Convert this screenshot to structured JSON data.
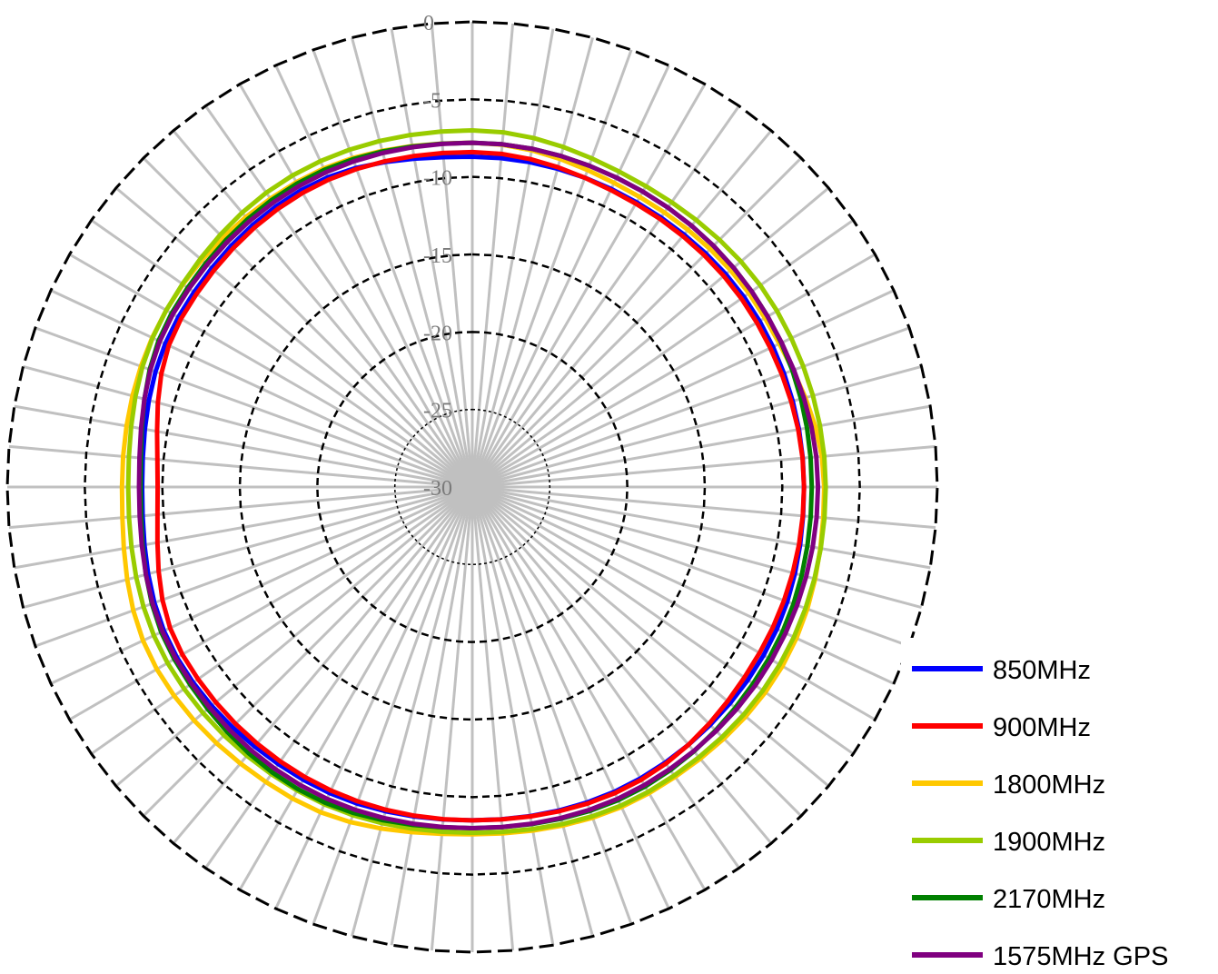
{
  "chart_data": {
    "type": "radar",
    "title": "",
    "angular_divisions": 72,
    "radial_axis": {
      "range": [
        -30,
        0
      ],
      "ticks": [
        0,
        -5,
        -10,
        -15,
        -20,
        -25,
        -30
      ],
      "tick_labels": [
        "0",
        "-5",
        "-10",
        "-15",
        "-20",
        "-25",
        "-30"
      ]
    },
    "grid": {
      "radial_spokes": true,
      "rings": true
    },
    "legend_position": "bottom-right",
    "series": [
      {
        "name": "850MHz",
        "color": "#0000ff",
        "values_by_angle_deg": [
          [
            0,
            -8.7
          ],
          [
            30,
            -8.8
          ],
          [
            60,
            -8.6
          ],
          [
            90,
            -8.6
          ],
          [
            120,
            -8.3
          ],
          [
            150,
            -8.3
          ],
          [
            180,
            -8.5
          ],
          [
            210,
            -8.2
          ],
          [
            240,
            -8.0
          ],
          [
            270,
            -8.7
          ],
          [
            300,
            -8.1
          ],
          [
            330,
            -7.9
          ]
        ]
      },
      {
        "name": "900MHz",
        "color": "#ff0000",
        "values_by_angle_deg": [
          [
            0,
            -8.4
          ],
          [
            30,
            -8.9
          ],
          [
            60,
            -8.8
          ],
          [
            90,
            -8.6
          ],
          [
            120,
            -8.6
          ],
          [
            150,
            -8.2
          ],
          [
            180,
            -8.5
          ],
          [
            210,
            -8.4
          ],
          [
            240,
            -8.4
          ],
          [
            270,
            -9.7
          ],
          [
            300,
            -8.3
          ],
          [
            330,
            -8.1
          ]
        ]
      },
      {
        "name": "1800MHz",
        "color": "#ffc800",
        "values_by_angle_deg": [
          [
            0,
            -7.8
          ],
          [
            30,
            -8.4
          ],
          [
            60,
            -8.2
          ],
          [
            90,
            -7.3
          ],
          [
            120,
            -6.9
          ],
          [
            150,
            -7.2
          ],
          [
            180,
            -7.6
          ],
          [
            210,
            -6.8
          ],
          [
            240,
            -6.5
          ],
          [
            270,
            -7.4
          ],
          [
            300,
            -7.2
          ],
          [
            330,
            -7.3
          ]
        ]
      },
      {
        "name": "1900MHz",
        "color": "#99cc00",
        "values_by_angle_deg": [
          [
            0,
            -7.0
          ],
          [
            30,
            -7.6
          ],
          [
            60,
            -7.3
          ],
          [
            90,
            -7.2
          ],
          [
            120,
            -7.1
          ],
          [
            150,
            -7.3
          ],
          [
            180,
            -7.7
          ],
          [
            210,
            -7.4
          ],
          [
            240,
            -7.3
          ],
          [
            270,
            -7.8
          ],
          [
            300,
            -7.2
          ],
          [
            330,
            -6.8
          ]
        ]
      },
      {
        "name": "2170MHz",
        "color": "#008000",
        "values_by_angle_deg": [
          [
            0,
            -7.8
          ],
          [
            30,
            -8.0
          ],
          [
            60,
            -8.0
          ],
          [
            90,
            -8.1
          ],
          [
            120,
            -7.9
          ],
          [
            150,
            -7.7
          ],
          [
            180,
            -8.0
          ],
          [
            210,
            -7.5
          ],
          [
            240,
            -7.8
          ],
          [
            270,
            -8.6
          ],
          [
            300,
            -7.6
          ],
          [
            330,
            -7.4
          ]
        ]
      },
      {
        "name": "1575MHz GPS",
        "color": "#800080",
        "values_by_angle_deg": [
          [
            0,
            -7.8
          ],
          [
            30,
            -8.0
          ],
          [
            60,
            -8.0
          ],
          [
            90,
            -7.7
          ],
          [
            120,
            -7.7
          ],
          [
            150,
            -7.8
          ],
          [
            180,
            -8.0
          ],
          [
            210,
            -7.8
          ],
          [
            240,
            -7.9
          ],
          [
            270,
            -8.5
          ],
          [
            300,
            -7.7
          ],
          [
            330,
            -7.6
          ]
        ]
      }
    ]
  }
}
